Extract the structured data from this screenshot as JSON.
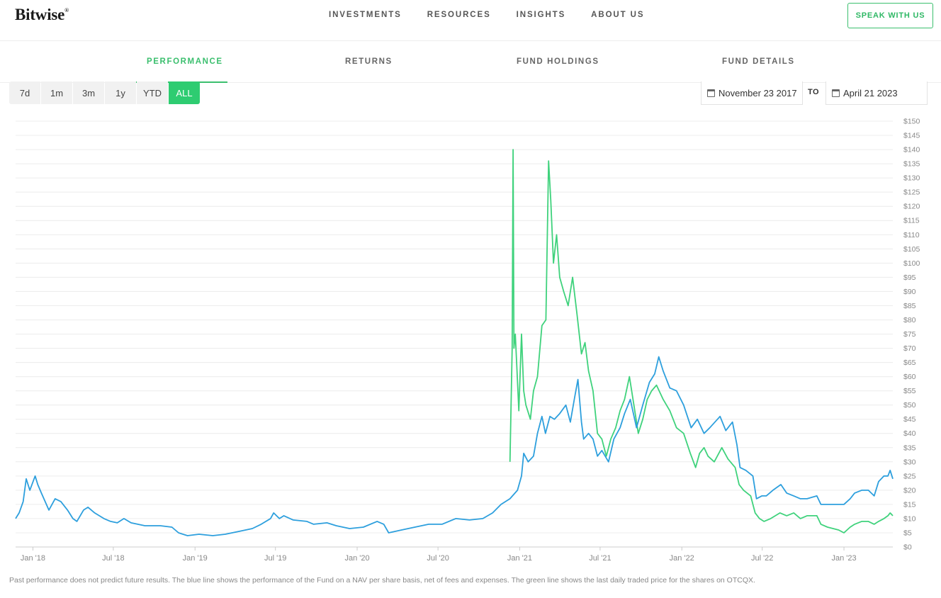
{
  "brand": {
    "logo_text": "Bitwise",
    "logo_mark": "®"
  },
  "nav": {
    "items": [
      {
        "label": "INVESTMENTS",
        "id": "investments"
      },
      {
        "label": "RESOURCES",
        "id": "resources"
      },
      {
        "label": "INSIGHTS",
        "id": "insights"
      },
      {
        "label": "ABOUT US",
        "id": "about-us"
      }
    ],
    "cta_label": "SPEAK WITH US"
  },
  "subnav": {
    "tabs": [
      {
        "label": "PERFORMANCE",
        "id": "performance",
        "active": true
      },
      {
        "label": "RETURNS",
        "id": "returns",
        "active": false
      },
      {
        "label": "FUND HOLDINGS",
        "id": "fund-holdings",
        "active": false
      },
      {
        "label": "FUND DETAILS",
        "id": "fund-details",
        "active": false
      }
    ]
  },
  "range_buttons": [
    {
      "label": "7d",
      "id": "7d",
      "active": false
    },
    {
      "label": "1m",
      "id": "1m",
      "active": false
    },
    {
      "label": "3m",
      "id": "3m",
      "active": false
    },
    {
      "label": "1y",
      "id": "1y",
      "active": false
    },
    {
      "label": "YTD",
      "id": "ytd",
      "active": false
    },
    {
      "label": "ALL",
      "id": "all",
      "active": true
    }
  ],
  "date_range": {
    "from": "November 23 2017",
    "to_label": "TO",
    "to": "April 21 2023"
  },
  "colors": {
    "accent": "#2ecc71",
    "nav_line": "#2d9fdd",
    "price_line": "#3fd27c",
    "grid": "#ececec"
  },
  "chart_data": {
    "type": "line",
    "y_axis": {
      "min": 0,
      "max": 150,
      "step": 5,
      "prefix": "$",
      "position": "right"
    },
    "x_ticks": [
      {
        "label": "Jan '18",
        "date": "2018-01-01"
      },
      {
        "label": "Jul '18",
        "date": "2018-07-01"
      },
      {
        "label": "Jan '19",
        "date": "2019-01-01"
      },
      {
        "label": "Jul '19",
        "date": "2019-07-01"
      },
      {
        "label": "Jan '20",
        "date": "2020-01-01"
      },
      {
        "label": "Jul '20",
        "date": "2020-07-01"
      },
      {
        "label": "Jan '21",
        "date": "2021-01-01"
      },
      {
        "label": "Jul '21",
        "date": "2021-07-01"
      },
      {
        "label": "Jan '22",
        "date": "2022-01-01"
      },
      {
        "label": "Jul '22",
        "date": "2022-07-01"
      },
      {
        "label": "Jan '23",
        "date": "2023-01-01"
      }
    ],
    "x_range": [
      "2017-11-23",
      "2023-04-21"
    ],
    "grid": true,
    "series": [
      {
        "id": "nav",
        "color": "#2d9fdd",
        "points": [
          [
            "2017-11-23",
            10
          ],
          [
            "2017-12-01",
            12
          ],
          [
            "2017-12-10",
            16
          ],
          [
            "2017-12-17",
            24
          ],
          [
            "2017-12-25",
            20
          ],
          [
            "2018-01-06",
            25
          ],
          [
            "2018-01-12",
            22
          ],
          [
            "2018-01-20",
            19
          ],
          [
            "2018-02-06",
            13
          ],
          [
            "2018-02-20",
            17
          ],
          [
            "2018-03-05",
            16
          ],
          [
            "2018-03-20",
            13
          ],
          [
            "2018-04-01",
            10
          ],
          [
            "2018-04-10",
            9
          ],
          [
            "2018-04-25",
            13
          ],
          [
            "2018-05-05",
            14
          ],
          [
            "2018-05-20",
            12
          ],
          [
            "2018-06-10",
            10
          ],
          [
            "2018-06-25",
            9
          ],
          [
            "2018-07-10",
            8.5
          ],
          [
            "2018-07-25",
            10
          ],
          [
            "2018-08-10",
            8.5
          ],
          [
            "2018-08-25",
            8
          ],
          [
            "2018-09-10",
            7.5
          ],
          [
            "2018-10-15",
            7.5
          ],
          [
            "2018-11-10",
            7
          ],
          [
            "2018-11-25",
            5
          ],
          [
            "2018-12-15",
            4
          ],
          [
            "2019-01-10",
            4.5
          ],
          [
            "2019-02-10",
            4
          ],
          [
            "2019-03-10",
            4.5
          ],
          [
            "2019-04-10",
            5.5
          ],
          [
            "2019-05-10",
            6.5
          ],
          [
            "2019-05-30",
            8
          ],
          [
            "2019-06-20",
            10
          ],
          [
            "2019-06-27",
            12
          ],
          [
            "2019-07-10",
            10
          ],
          [
            "2019-07-20",
            11
          ],
          [
            "2019-08-10",
            9.5
          ],
          [
            "2019-09-10",
            9
          ],
          [
            "2019-09-25",
            8
          ],
          [
            "2019-10-25",
            8.5
          ],
          [
            "2019-11-15",
            7.5
          ],
          [
            "2019-12-15",
            6.5
          ],
          [
            "2020-01-15",
            7
          ],
          [
            "2020-02-15",
            9
          ],
          [
            "2020-03-01",
            8
          ],
          [
            "2020-03-12",
            5
          ],
          [
            "2020-04-10",
            6
          ],
          [
            "2020-05-10",
            7
          ],
          [
            "2020-06-10",
            8
          ],
          [
            "2020-07-10",
            8
          ],
          [
            "2020-08-10",
            10
          ],
          [
            "2020-09-10",
            9.5
          ],
          [
            "2020-10-10",
            10
          ],
          [
            "2020-11-01",
            12
          ],
          [
            "2020-11-20",
            15
          ],
          [
            "2020-12-10",
            17
          ],
          [
            "2020-12-27",
            20
          ],
          [
            "2021-01-05",
            25
          ],
          [
            "2021-01-10",
            33
          ],
          [
            "2021-01-20",
            30
          ],
          [
            "2021-02-01",
            32
          ],
          [
            "2021-02-10",
            40
          ],
          [
            "2021-02-20",
            46
          ],
          [
            "2021-02-28",
            40
          ],
          [
            "2021-03-10",
            46
          ],
          [
            "2021-03-20",
            45
          ],
          [
            "2021-04-01",
            47
          ],
          [
            "2021-04-15",
            50
          ],
          [
            "2021-04-25",
            44
          ],
          [
            "2021-05-05",
            53
          ],
          [
            "2021-05-12",
            59
          ],
          [
            "2021-05-20",
            44
          ],
          [
            "2021-05-25",
            38
          ],
          [
            "2021-06-05",
            40
          ],
          [
            "2021-06-15",
            38
          ],
          [
            "2021-06-25",
            32
          ],
          [
            "2021-07-05",
            34
          ],
          [
            "2021-07-20",
            30
          ],
          [
            "2021-08-01",
            38
          ],
          [
            "2021-08-15",
            42
          ],
          [
            "2021-08-25",
            47
          ],
          [
            "2021-09-07",
            52
          ],
          [
            "2021-09-21",
            42
          ],
          [
            "2021-10-05",
            50
          ],
          [
            "2021-10-20",
            58
          ],
          [
            "2021-11-01",
            61
          ],
          [
            "2021-11-10",
            67
          ],
          [
            "2021-11-20",
            62
          ],
          [
            "2021-12-05",
            56
          ],
          [
            "2021-12-20",
            55
          ],
          [
            "2022-01-05",
            50
          ],
          [
            "2022-01-22",
            42
          ],
          [
            "2022-02-05",
            45
          ],
          [
            "2022-02-20",
            40
          ],
          [
            "2022-03-05",
            42
          ],
          [
            "2022-03-28",
            46
          ],
          [
            "2022-04-10",
            41
          ],
          [
            "2022-04-25",
            44
          ],
          [
            "2022-05-05",
            36
          ],
          [
            "2022-05-12",
            28
          ],
          [
            "2022-05-25",
            27
          ],
          [
            "2022-06-10",
            25
          ],
          [
            "2022-06-18",
            17
          ],
          [
            "2022-06-30",
            18
          ],
          [
            "2022-07-10",
            18
          ],
          [
            "2022-07-25",
            20
          ],
          [
            "2022-08-12",
            22
          ],
          [
            "2022-08-25",
            19
          ],
          [
            "2022-09-10",
            18
          ],
          [
            "2022-09-25",
            17
          ],
          [
            "2022-10-10",
            17
          ],
          [
            "2022-11-01",
            18
          ],
          [
            "2022-11-10",
            15
          ],
          [
            "2022-11-25",
            15
          ],
          [
            "2022-12-15",
            15
          ],
          [
            "2023-01-01",
            15
          ],
          [
            "2023-01-15",
            17
          ],
          [
            "2023-01-25",
            19
          ],
          [
            "2023-02-10",
            20
          ],
          [
            "2023-02-25",
            20
          ],
          [
            "2023-03-10",
            18
          ],
          [
            "2023-03-20",
            23
          ],
          [
            "2023-04-01",
            25
          ],
          [
            "2023-04-10",
            25
          ],
          [
            "2023-04-15",
            27
          ],
          [
            "2023-04-21",
            24
          ]
        ]
      },
      {
        "id": "market-price",
        "color": "#3fd27c",
        "points": [
          [
            "2020-12-10",
            30
          ],
          [
            "2020-12-15",
            70
          ],
          [
            "2020-12-17",
            140
          ],
          [
            "2020-12-19",
            70
          ],
          [
            "2020-12-22",
            75
          ],
          [
            "2020-12-25",
            65
          ],
          [
            "2020-12-30",
            48
          ],
          [
            "2021-01-05",
            75
          ],
          [
            "2021-01-10",
            55
          ],
          [
            "2021-01-15",
            50
          ],
          [
            "2021-01-25",
            45
          ],
          [
            "2021-02-01",
            55
          ],
          [
            "2021-02-10",
            60
          ],
          [
            "2021-02-20",
            78
          ],
          [
            "2021-03-01",
            80
          ],
          [
            "2021-03-07",
            136
          ],
          [
            "2021-03-12",
            122
          ],
          [
            "2021-03-18",
            100
          ],
          [
            "2021-03-25",
            110
          ],
          [
            "2021-04-01",
            95
          ],
          [
            "2021-04-10",
            90
          ],
          [
            "2021-04-20",
            85
          ],
          [
            "2021-04-30",
            95
          ],
          [
            "2021-05-10",
            82
          ],
          [
            "2021-05-20",
            68
          ],
          [
            "2021-05-28",
            72
          ],
          [
            "2021-06-05",
            62
          ],
          [
            "2021-06-15",
            55
          ],
          [
            "2021-06-25",
            40
          ],
          [
            "2021-07-05",
            38
          ],
          [
            "2021-07-15",
            32
          ],
          [
            "2021-07-25",
            38
          ],
          [
            "2021-08-05",
            42
          ],
          [
            "2021-08-15",
            48
          ],
          [
            "2021-08-25",
            52
          ],
          [
            "2021-09-05",
            60
          ],
          [
            "2021-09-15",
            50
          ],
          [
            "2021-09-25",
            40
          ],
          [
            "2021-10-05",
            45
          ],
          [
            "2021-10-15",
            52
          ],
          [
            "2021-10-25",
            55
          ],
          [
            "2021-11-05",
            57
          ],
          [
            "2021-11-20",
            52
          ],
          [
            "2021-12-05",
            48
          ],
          [
            "2021-12-20",
            42
          ],
          [
            "2022-01-05",
            40
          ],
          [
            "2022-01-20",
            33
          ],
          [
            "2022-02-01",
            28
          ],
          [
            "2022-02-10",
            33
          ],
          [
            "2022-02-20",
            35
          ],
          [
            "2022-03-01",
            32
          ],
          [
            "2022-03-15",
            30
          ],
          [
            "2022-04-01",
            35
          ],
          [
            "2022-04-15",
            31
          ],
          [
            "2022-05-01",
            28
          ],
          [
            "2022-05-10",
            22
          ],
          [
            "2022-05-20",
            20
          ],
          [
            "2022-06-05",
            18
          ],
          [
            "2022-06-15",
            12
          ],
          [
            "2022-06-25",
            10
          ],
          [
            "2022-07-05",
            9
          ],
          [
            "2022-07-20",
            10
          ],
          [
            "2022-08-10",
            12
          ],
          [
            "2022-08-25",
            11
          ],
          [
            "2022-09-10",
            12
          ],
          [
            "2022-09-25",
            10
          ],
          [
            "2022-10-10",
            11
          ],
          [
            "2022-11-01",
            11
          ],
          [
            "2022-11-10",
            8
          ],
          [
            "2022-11-25",
            7
          ],
          [
            "2022-12-20",
            6
          ],
          [
            "2023-01-01",
            5
          ],
          [
            "2023-01-15",
            7
          ],
          [
            "2023-01-25",
            8
          ],
          [
            "2023-02-10",
            9
          ],
          [
            "2023-02-25",
            9
          ],
          [
            "2023-03-10",
            8
          ],
          [
            "2023-03-20",
            9
          ],
          [
            "2023-04-01",
            10
          ],
          [
            "2023-04-10",
            11
          ],
          [
            "2023-04-15",
            12
          ],
          [
            "2023-04-21",
            11
          ]
        ]
      }
    ]
  },
  "footnote": "Past performance does not predict future results. The blue line shows the performance of the Fund on a NAV per share basis, net of fees and expenses. The green line shows the last daily traded price for the shares on OTCQX."
}
